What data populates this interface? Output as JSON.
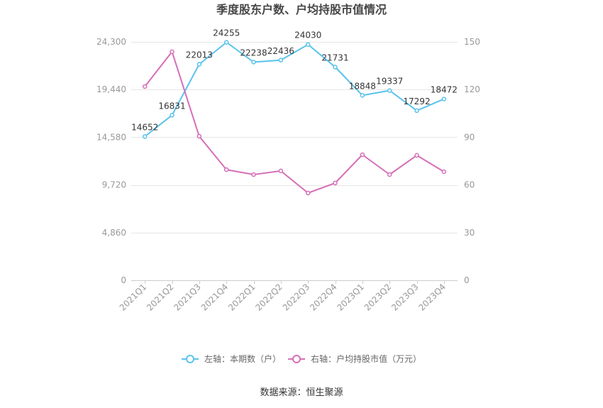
{
  "source": "数据来源：恒生聚源",
  "chart_data": {
    "type": "line",
    "title": "季度股东户数、户均持股市值情况",
    "categories": [
      "2021Q1",
      "2021Q2",
      "2021Q3",
      "2021Q4",
      "2022Q1",
      "2022Q2",
      "2022Q3",
      "2022Q4",
      "2023Q1",
      "2023Q2",
      "2023Q3",
      "2023Q4"
    ],
    "left_axis": {
      "range": [
        0,
        24300
      ],
      "ticks": [
        "0",
        "4,860",
        "9,720",
        "14,580",
        "19,440",
        "24,300"
      ]
    },
    "right_axis": {
      "range": [
        0,
        150
      ],
      "ticks": [
        "0",
        "30",
        "60",
        "90",
        "120",
        "150"
      ]
    },
    "series": [
      {
        "name": "左轴：本期数（户）",
        "axis": "left",
        "color": "#5ac3ec",
        "show_labels": true,
        "values": [
          14652,
          16831,
          22013,
          24255,
          22238,
          22436,
          24030,
          21731,
          18848,
          19337,
          17292,
          18472
        ]
      },
      {
        "name": "右轴：户均持股市值（万元）",
        "axis": "right",
        "color": "#d66fb7",
        "show_labels": false,
        "values": [
          121.9,
          143.8,
          90.6,
          69.6,
          66.5,
          68.8,
          54.9,
          61.2,
          79.0,
          66.5,
          78.6,
          68.3
        ]
      }
    ],
    "grid": true,
    "legend_position": "bottom"
  }
}
